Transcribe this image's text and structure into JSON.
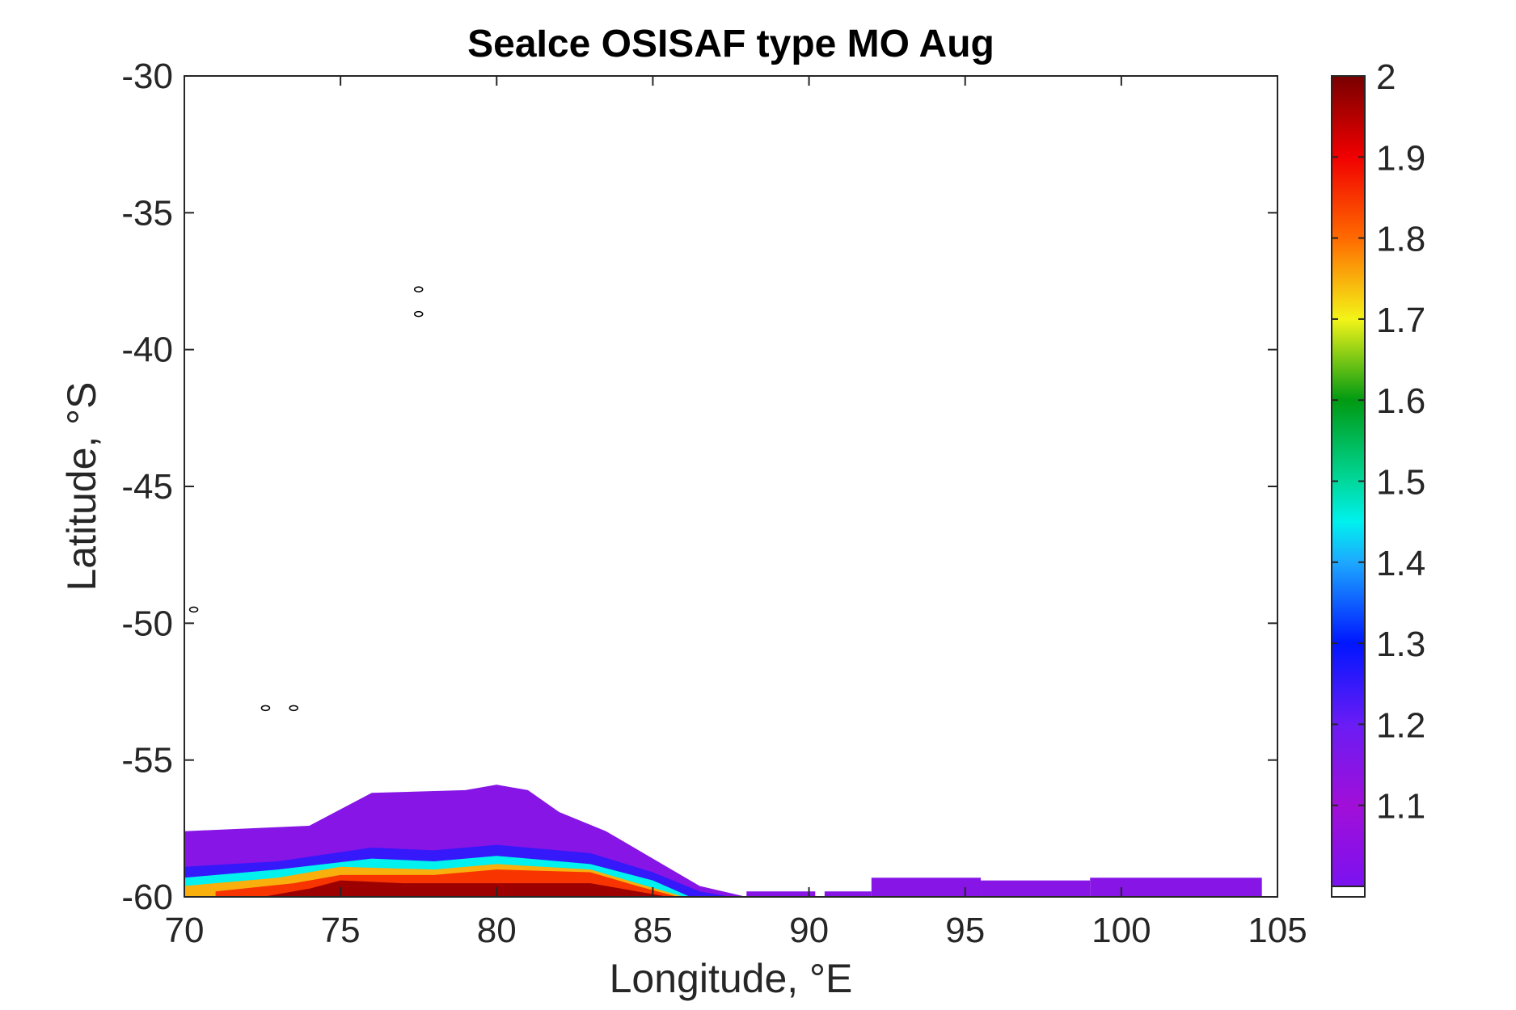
{
  "chart_data": {
    "type": "heatmap",
    "title": "SeaIce OSISAF type MO Aug",
    "xlabel": "Longitude, °E",
    "ylabel": "Latitude, °S",
    "xlim": [
      70,
      105
    ],
    "ylim": [
      -60,
      -30
    ],
    "x_ticks": [
      "70",
      "75",
      "80",
      "85",
      "90",
      "95",
      "100",
      "105"
    ],
    "y_ticks": [
      "-30",
      "-35",
      "-40",
      "-45",
      "-50",
      "-55",
      "-60"
    ],
    "colorbar": {
      "range": [
        1.0,
        2.0
      ],
      "ticks": [
        "2",
        "1.9",
        "1.8",
        "1.7",
        "1.6",
        "1.5",
        "1.4",
        "1.3",
        "1.2",
        "1.1"
      ],
      "colormap": "rainbow (purple → blue → cyan → green → yellow → orange → red → dark red)",
      "nodata_color": "#ffffff"
    },
    "grid": false,
    "ice_cover": {
      "description": "Sea ice type field along the southern edge of the map; values increase toward the south",
      "outer_edge_lat_by_lon": [
        {
          "lon": 70.0,
          "lat": -57.6
        },
        {
          "lon": 74.0,
          "lat": -57.4
        },
        {
          "lon": 75.0,
          "lat": -56.8
        },
        {
          "lon": 76.0,
          "lat": -56.2
        },
        {
          "lon": 77.5,
          "lat": -56.0
        },
        {
          "lon": 79.0,
          "lat": -56.1
        },
        {
          "lon": 80.0,
          "lat": -55.9
        },
        {
          "lon": 81.0,
          "lat": -56.1
        },
        {
          "lon": 82.0,
          "lat": -56.9
        },
        {
          "lon": 83.5,
          "lat": -57.6
        },
        {
          "lon": 85.0,
          "lat": -58.6
        },
        {
          "lon": 86.5,
          "lat": -59.6
        },
        {
          "lon": 88.0,
          "lat": -60.0
        }
      ],
      "bands": [
        {
          "value": 1.15,
          "top_lat_by_lon": [
            [
              70,
              -57.6
            ],
            [
              74,
              -57.4
            ],
            [
              76,
              -56.2
            ],
            [
              79,
              -56.1
            ],
            [
              80,
              -55.9
            ],
            [
              81,
              -56.1
            ],
            [
              82,
              -56.9
            ],
            [
              83.5,
              -57.6
            ],
            [
              85,
              -58.6
            ],
            [
              86.5,
              -59.6
            ],
            [
              88,
              -60.0
            ]
          ]
        },
        {
          "value": 1.25,
          "top_lat_by_lon": [
            [
              70,
              -58.9
            ],
            [
              73,
              -58.7
            ],
            [
              76,
              -58.2
            ],
            [
              78,
              -58.3
            ],
            [
              80,
              -58.1
            ],
            [
              83,
              -58.4
            ],
            [
              85,
              -59.1
            ],
            [
              86.5,
              -59.8
            ],
            [
              87.5,
              -60.0
            ]
          ]
        },
        {
          "value": 1.45,
          "top_lat_by_lon": [
            [
              70,
              -59.3
            ],
            [
              73,
              -59.0
            ],
            [
              76,
              -58.6
            ],
            [
              78,
              -58.7
            ],
            [
              80,
              -58.5
            ],
            [
              83,
              -58.8
            ],
            [
              85,
              -59.4
            ],
            [
              86.2,
              -60.0
            ]
          ]
        },
        {
          "value": 1.75,
          "top_lat_by_lon": [
            [
              70,
              -59.6
            ],
            [
              73,
              -59.3
            ],
            [
              75,
              -58.9
            ],
            [
              78,
              -59.0
            ],
            [
              80,
              -58.8
            ],
            [
              83,
              -59.0
            ],
            [
              84.5,
              -59.5
            ],
            [
              86.0,
              -60.0
            ]
          ]
        },
        {
          "value": 1.85,
          "top_lat_by_lon": [
            [
              71,
              -59.8
            ],
            [
              73.5,
              -59.5
            ],
            [
              75,
              -59.2
            ],
            [
              78,
              -59.2
            ],
            [
              80,
              -59.0
            ],
            [
              83,
              -59.1
            ],
            [
              84.5,
              -59.6
            ],
            [
              85.8,
              -60.0
            ]
          ]
        },
        {
          "value": 1.97,
          "top_lat_by_lon": [
            [
              72.5,
              -60.0
            ],
            [
              74,
              -59.7
            ],
            [
              75,
              -59.4
            ],
            [
              77,
              -59.5
            ],
            [
              80,
              -59.5
            ],
            [
              83,
              -59.5
            ],
            [
              84.5,
              -59.8
            ],
            [
              85.5,
              -60.0
            ]
          ]
        }
      ],
      "eastern_patches": [
        {
          "value": 1.15,
          "lon_range": [
            88.0,
            90.2
          ],
          "lat_range": [
            -60.0,
            -59.8
          ]
        },
        {
          "value": 1.15,
          "lon_range": [
            90.5,
            92.0
          ],
          "lat_range": [
            -60.0,
            -59.8
          ]
        },
        {
          "value": 1.15,
          "lon_range": [
            92.0,
            95.5
          ],
          "lat_range": [
            -60.0,
            -59.3
          ]
        },
        {
          "value": 1.15,
          "lon_range": [
            95.5,
            99.0
          ],
          "lat_range": [
            -60.0,
            -59.4
          ]
        },
        {
          "value": 1.15,
          "lon_range": [
            99.0,
            104.5
          ],
          "lat_range": [
            -60.0,
            -59.3
          ]
        }
      ]
    },
    "islands": [
      {
        "lon": 77.5,
        "lat": -37.8
      },
      {
        "lon": 77.5,
        "lat": -38.7
      },
      {
        "lon": 70.3,
        "lat": -49.5
      },
      {
        "lon": 72.6,
        "lat": -53.1
      },
      {
        "lon": 73.5,
        "lat": -53.1
      }
    ]
  }
}
